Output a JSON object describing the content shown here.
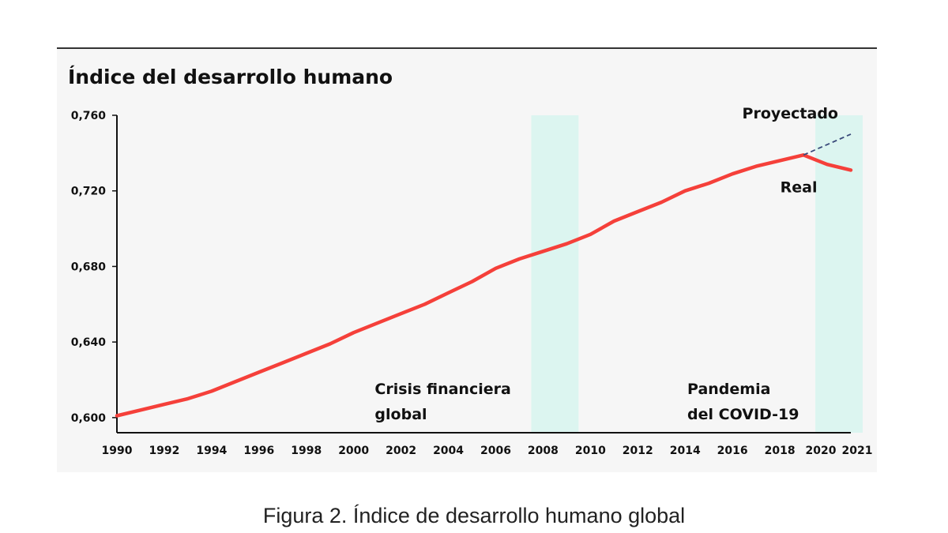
{
  "caption": "Figura 2. Índice de desarrollo humano global",
  "colors": {
    "real_line": "#f5403a",
    "projected_line": "#3a4a7a",
    "shade": "#dcf5f0",
    "axis": "#111111",
    "panel_bg": "#f6f6f6"
  },
  "chart_data": {
    "type": "line",
    "title": "Índice del desarrollo humano",
    "xlabel": "",
    "ylabel": "",
    "xlim": [
      1990,
      2021
    ],
    "ylim": [
      0.592,
      0.76
    ],
    "x_ticks": [
      1990,
      1992,
      1994,
      1996,
      1998,
      2000,
      2002,
      2004,
      2006,
      2008,
      2010,
      2012,
      2014,
      2016,
      2018,
      2020,
      2021
    ],
    "x_tick_labels": [
      "1990",
      "1992",
      "1994",
      "1996",
      "1998",
      "2000",
      "2002",
      "2004",
      "2006",
      "2008",
      "2010",
      "2012",
      "2014",
      "2016",
      "2018",
      "2020",
      "2021"
    ],
    "y_ticks": [
      0.6,
      0.64,
      0.68,
      0.72,
      0.76
    ],
    "y_tick_labels": [
      "0,600",
      "0,640",
      "0,680",
      "0,720",
      "0,760"
    ],
    "grid": false,
    "series": [
      {
        "name": "Real",
        "style": "solid",
        "x": [
          1990,
          1991,
          1992,
          1993,
          1994,
          1995,
          1996,
          1997,
          1998,
          1999,
          2000,
          2001,
          2002,
          2003,
          2004,
          2005,
          2006,
          2007,
          2008,
          2009,
          2010,
          2011,
          2012,
          2013,
          2014,
          2015,
          2016,
          2017,
          2018,
          2019,
          2020,
          2021
        ],
        "values": [
          0.601,
          0.604,
          0.607,
          0.61,
          0.614,
          0.619,
          0.624,
          0.629,
          0.634,
          0.639,
          0.645,
          0.65,
          0.655,
          0.66,
          0.666,
          0.672,
          0.679,
          0.684,
          0.688,
          0.692,
          0.697,
          0.704,
          0.709,
          0.714,
          0.72,
          0.724,
          0.729,
          0.733,
          0.736,
          0.739,
          0.734,
          0.731
        ]
      },
      {
        "name": "Proyectado",
        "style": "dashed",
        "x": [
          2019,
          2021
        ],
        "values": [
          0.739,
          0.75
        ]
      }
    ],
    "shaded_periods": [
      {
        "label_lines": [
          "Crisis financiera",
          "global"
        ],
        "x_start": 2007.5,
        "x_end": 2009.5
      },
      {
        "label_lines": [
          "Pandemia",
          "del COVID-19"
        ],
        "x_start": 2019.5,
        "x_end": 2021.5
      }
    ]
  }
}
